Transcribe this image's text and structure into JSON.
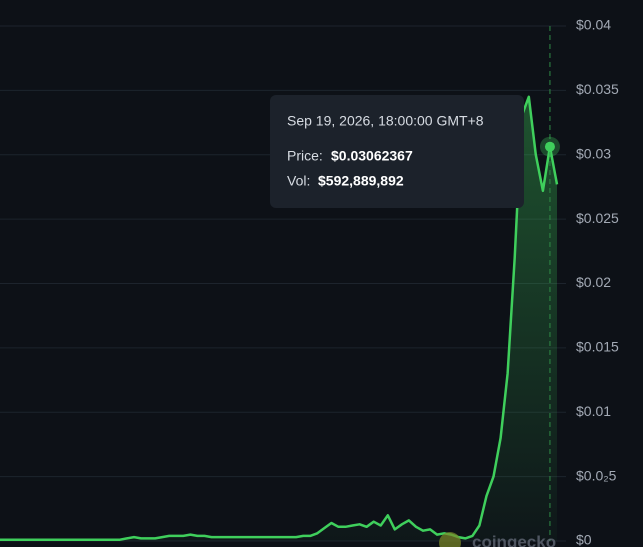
{
  "chart_data": {
    "type": "line",
    "values": [
      0.0001,
      0.0001,
      0.0001,
      0.0001,
      0.0001,
      0.0001,
      0.0001,
      0.0001,
      0.0001,
      0.0001,
      0.0001,
      0.0001,
      0.0001,
      0.0001,
      0.0001,
      0.0001,
      0.0001,
      0.0001,
      0.0002,
      0.0003,
      0.0002,
      0.0002,
      0.0002,
      0.0003,
      0.0004,
      0.0004,
      0.0004,
      0.0005,
      0.0004,
      0.0004,
      0.0003,
      0.0003,
      0.0003,
      0.0003,
      0.0003,
      0.0003,
      0.0003,
      0.0003,
      0.0003,
      0.0003,
      0.0003,
      0.0003,
      0.0003,
      0.0004,
      0.0004,
      0.0006,
      0.001,
      0.0014,
      0.0011,
      0.0011,
      0.0012,
      0.0013,
      0.0011,
      0.0015,
      0.0012,
      0.002,
      0.0009,
      0.0013,
      0.0016,
      0.0011,
      0.0008,
      0.0009,
      0.0005,
      0.0006,
      0.0005,
      0.0003,
      0.0002,
      0.0004,
      0.0012,
      0.0035,
      0.005,
      0.008,
      0.013,
      0.022,
      0.033,
      0.0345,
      0.03,
      0.0272,
      0.03062367,
      0.0277
    ],
    "color": "#3fcf5c",
    "ylim": [
      0,
      0.04
    ],
    "yticks": [
      0,
      {
        "value": 0.005,
        "label": "$0.0₂5"
      },
      {
        "value": 0.01,
        "label": "$0.01"
      },
      {
        "value": 0.015,
        "label": "$0.015"
      },
      {
        "value": 0.02,
        "label": "$0.02"
      },
      {
        "value": 0.025,
        "label": "$0.025"
      },
      {
        "value": 0.03,
        "label": "$0.03"
      },
      {
        "value": 0.035,
        "label": "$0.035"
      },
      {
        "value": 0.04,
        "label": "$0.04"
      }
    ],
    "zero_label": "$0",
    "grid": true,
    "hover_index": 78,
    "tooltip": {
      "date": "Sep 19, 2026, 18:00:00 GMT+8",
      "price_label": "Price:",
      "price": "$0.03062367",
      "vol_label": "Vol:",
      "vol": "$592,889,892"
    },
    "watermark": "coingecko"
  }
}
